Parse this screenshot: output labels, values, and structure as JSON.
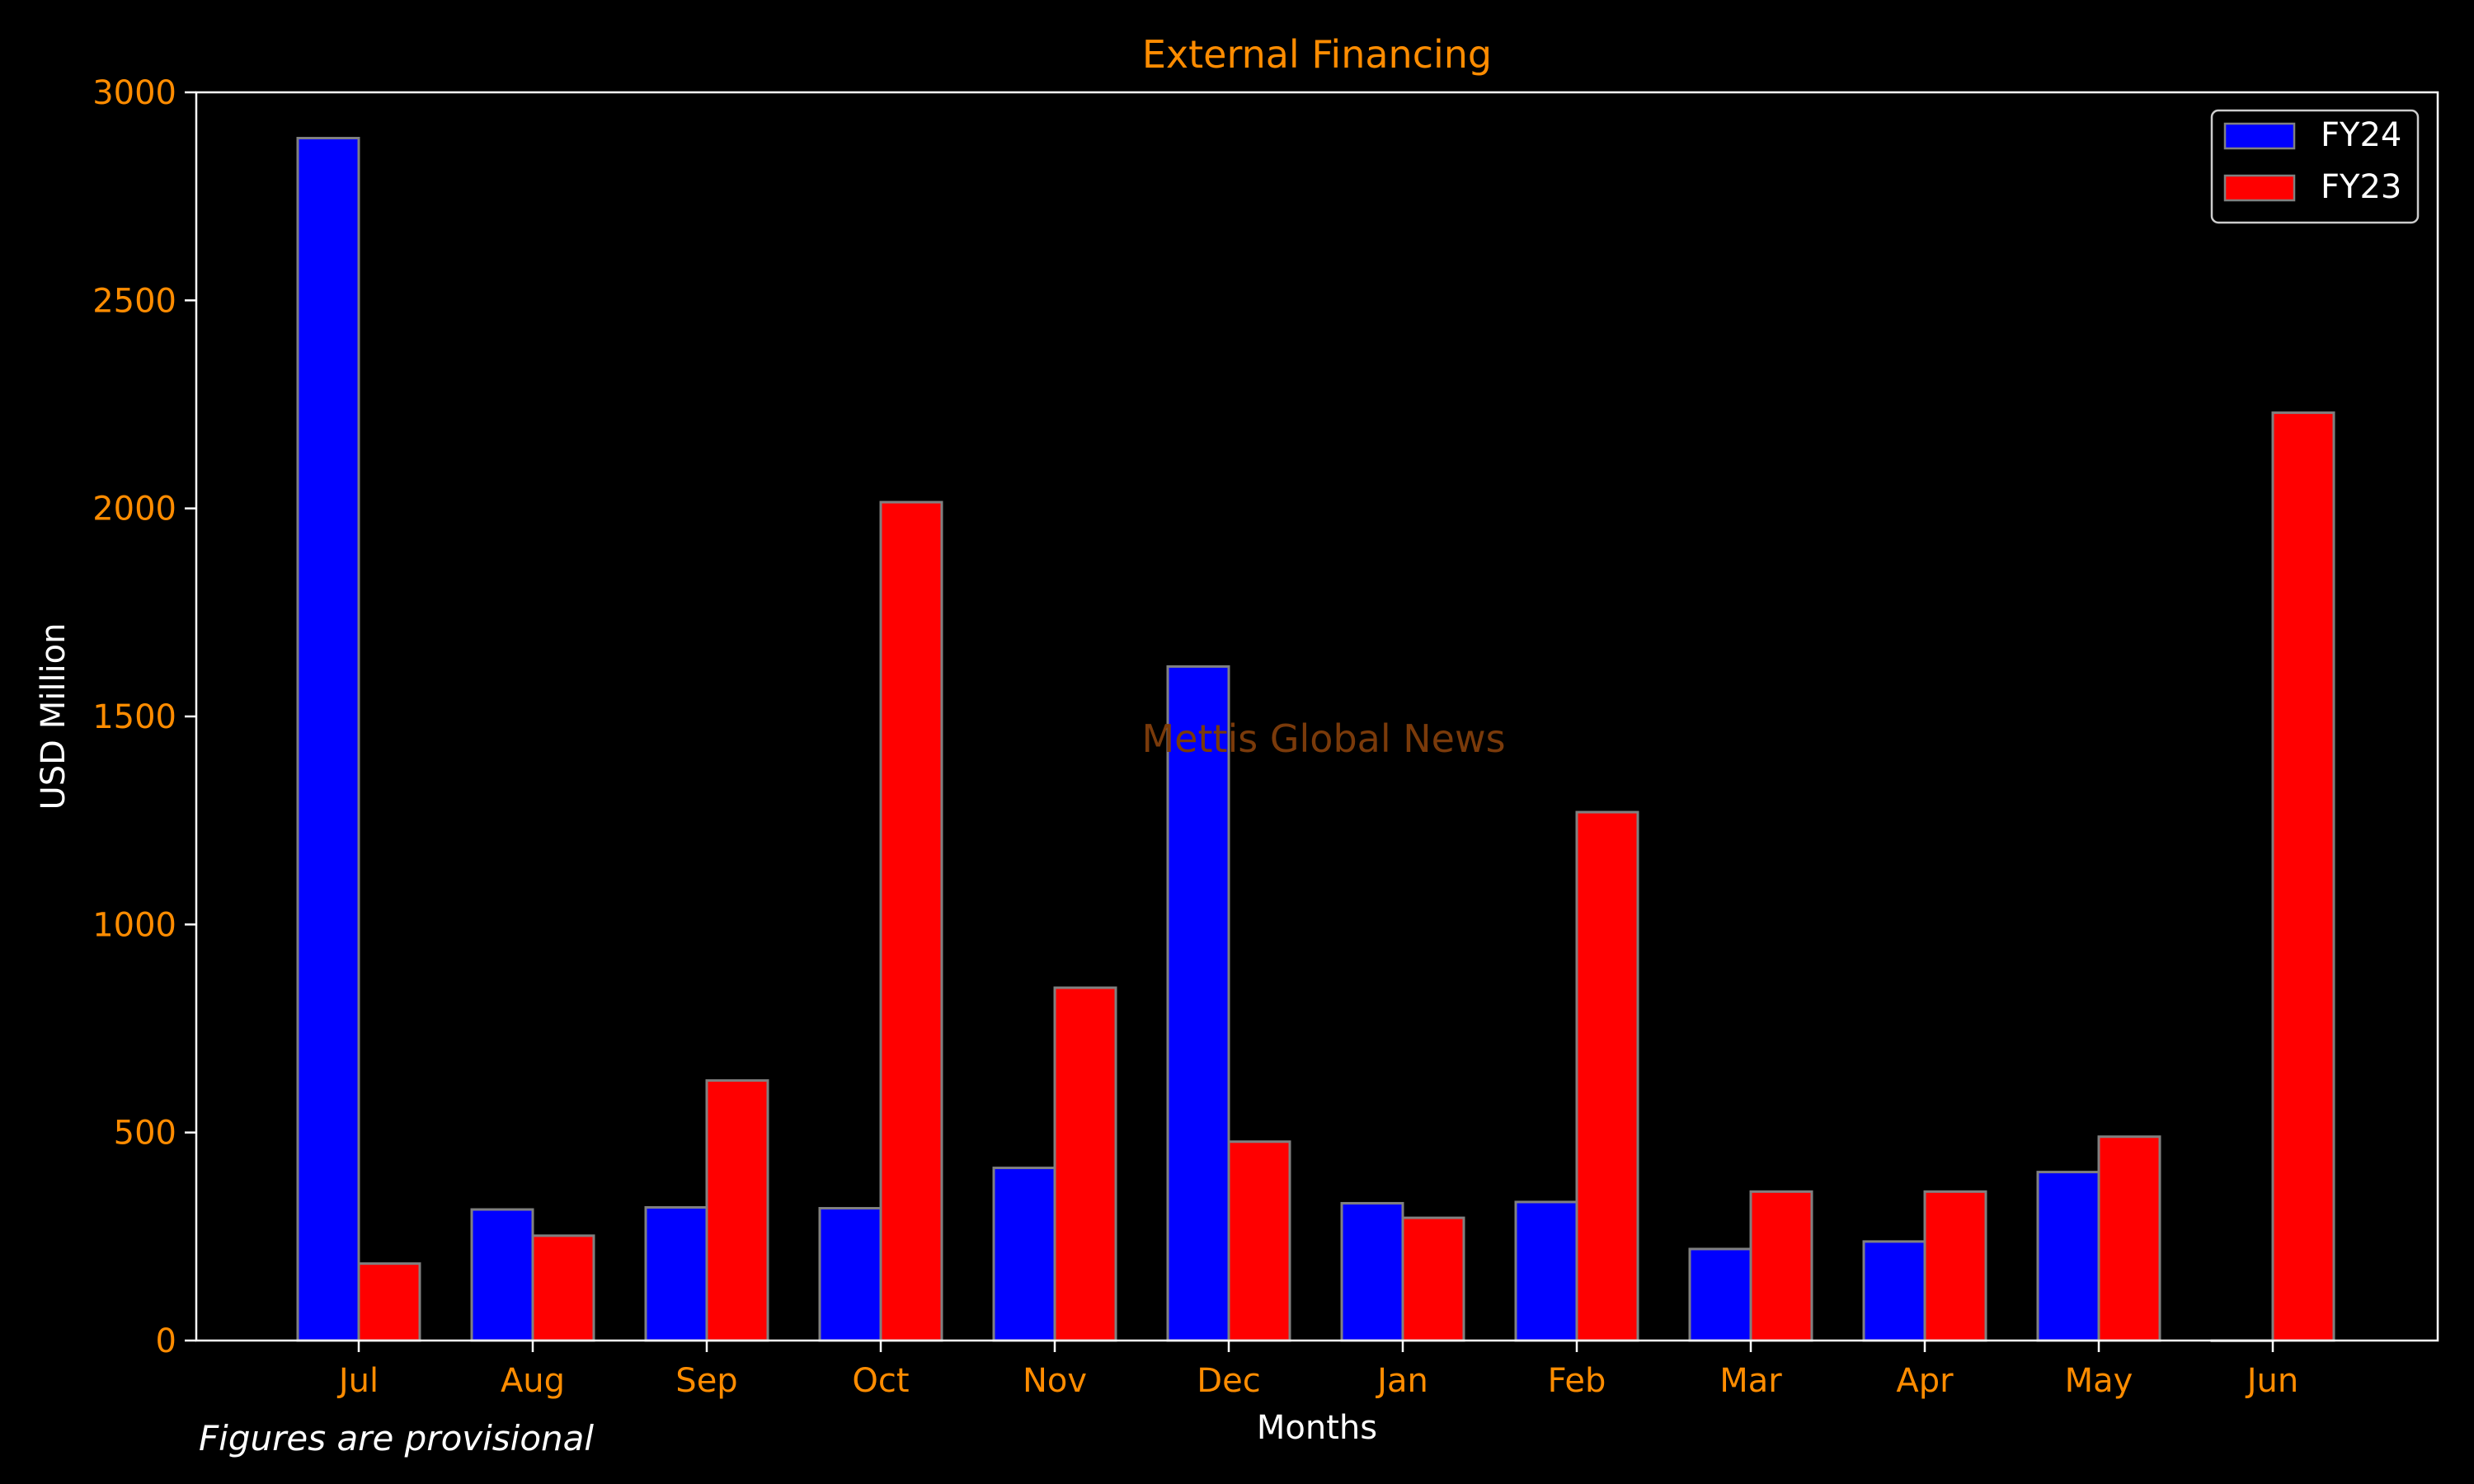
{
  "chart_data": {
    "type": "bar",
    "title": "External Financing",
    "xlabel": "Months",
    "ylabel": "USD Million",
    "categories": [
      "Jul",
      "Aug",
      "Sep",
      "Oct",
      "Nov",
      "Dec",
      "Jan",
      "Feb",
      "Mar",
      "Apr",
      "May",
      "Jun"
    ],
    "series": [
      {
        "name": "FY24",
        "color": "#0000ff",
        "values": [
          2890,
          315,
          320,
          318,
          415,
          1620,
          330,
          333,
          220,
          238,
          405,
          0
        ]
      },
      {
        "name": "FY23",
        "color": "#ff0000",
        "values": [
          185,
          252,
          625,
          2015,
          848,
          478,
          295,
          1270,
          358,
          358,
          490,
          2230
        ]
      }
    ],
    "ylim": [
      0,
      3000
    ],
    "yticks": [
      0,
      500,
      1000,
      1500,
      2000,
      2500,
      3000
    ],
    "grid": false,
    "legend_position": "top-right",
    "watermark": "Mettis Global News",
    "colors": {
      "background": "#000000",
      "title": "#ff8c00",
      "ticks": "#ff8c00",
      "axis_labels": "#ffffff",
      "frame": "#ffffff",
      "bar_edge": "#808080",
      "watermark": "#7a3a0a"
    }
  },
  "footnote": "Figures are provisional"
}
